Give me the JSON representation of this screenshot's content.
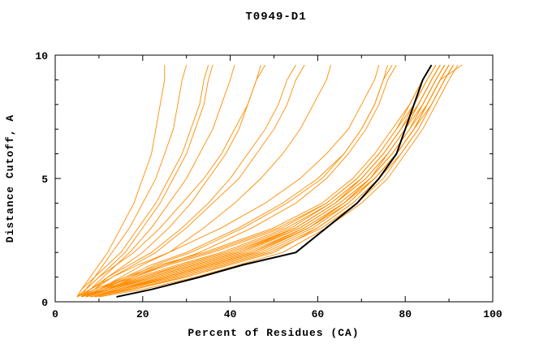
{
  "chart_data": {
    "type": "line",
    "title": "T0949-D1",
    "xlabel": "Percent of Residues (CA)",
    "ylabel": "Distance Cutoff, A",
    "xlim": [
      0,
      100
    ],
    "ylim": [
      0,
      10
    ],
    "xticks": [
      0,
      20,
      40,
      60,
      80,
      100
    ],
    "xminor": [
      10,
      30,
      50,
      70,
      90
    ],
    "yticks": [
      0,
      5,
      10
    ],
    "yminor": [
      1,
      2,
      3,
      4,
      6,
      7,
      8,
      9
    ],
    "grid": false,
    "legend": "none",
    "colors": {
      "models": "#ff8c00",
      "highlight": "#000000",
      "frame": "#000000"
    },
    "y_grid": [
      0.2,
      0.5,
      1,
      1.5,
      2,
      3,
      4,
      5,
      6,
      7,
      8,
      9,
      9.6
    ],
    "highlight_series": {
      "name": "black-consensus-curve",
      "x": [
        14,
        22,
        33,
        43,
        55,
        62,
        69,
        74,
        78,
        80,
        82,
        84,
        86
      ]
    },
    "model_series_x": [
      [
        8,
        15,
        25,
        35,
        45,
        58,
        66,
        72,
        76,
        80,
        83,
        86,
        88
      ],
      [
        7,
        12,
        20,
        30,
        40,
        55,
        64,
        70,
        75,
        79,
        82,
        85,
        87
      ],
      [
        9,
        18,
        30,
        40,
        50,
        60,
        68,
        74,
        78,
        82,
        85,
        88,
        90
      ],
      [
        6,
        10,
        18,
        26,
        36,
        52,
        62,
        69,
        74,
        78,
        81,
        84,
        86
      ],
      [
        8,
        14,
        24,
        34,
        44,
        57,
        66,
        73,
        78,
        82,
        86,
        89,
        91
      ],
      [
        7,
        13,
        22,
        32,
        42,
        56,
        65,
        72,
        77,
        81,
        84,
        87,
        89
      ],
      [
        10,
        20,
        32,
        42,
        52,
        62,
        70,
        76,
        80,
        84,
        87,
        90,
        92
      ],
      [
        6,
        11,
        19,
        28,
        38,
        53,
        63,
        70,
        75,
        79,
        83,
        86,
        88
      ],
      [
        8,
        16,
        27,
        37,
        47,
        59,
        67,
        73,
        78,
        82,
        85,
        88,
        90
      ],
      [
        7,
        12,
        21,
        31,
        41,
        55,
        64,
        71,
        76,
        80,
        83,
        86,
        88
      ],
      [
        9,
        17,
        28,
        38,
        48,
        60,
        68,
        74,
        79,
        83,
        86,
        89,
        91
      ],
      [
        5,
        9,
        16,
        24,
        34,
        50,
        61,
        68,
        73,
        77,
        81,
        84,
        86
      ],
      [
        8,
        15,
        26,
        36,
        46,
        58,
        67,
        73,
        78,
        82,
        85,
        88,
        90
      ],
      [
        7,
        13,
        23,
        33,
        43,
        56,
        65,
        72,
        77,
        81,
        84,
        87,
        89
      ],
      [
        6,
        10,
        17,
        25,
        35,
        51,
        62,
        69,
        74,
        78,
        82,
        85,
        87
      ],
      [
        8,
        14,
        25,
        35,
        45,
        57,
        66,
        73,
        78,
        82,
        85,
        88,
        93
      ],
      [
        7,
        11,
        20,
        29,
        39,
        54,
        63,
        70,
        75,
        79,
        83,
        86,
        88
      ],
      [
        9,
        18,
        29,
        39,
        49,
        61,
        69,
        75,
        79,
        83,
        86,
        89,
        91
      ],
      [
        6,
        12,
        22,
        32,
        42,
        55,
        64,
        71,
        76,
        80,
        84,
        87,
        89
      ],
      [
        8,
        16,
        26,
        36,
        46,
        58,
        66,
        72,
        77,
        81,
        85,
        88,
        90
      ],
      [
        6,
        10,
        16,
        22,
        30,
        42,
        52,
        60,
        66,
        70,
        73,
        75,
        76
      ],
      [
        7,
        12,
        18,
        25,
        33,
        45,
        55,
        62,
        67,
        71,
        74,
        76,
        78
      ],
      [
        5,
        8,
        13,
        19,
        26,
        38,
        48,
        56,
        62,
        67,
        70,
        73,
        74
      ],
      [
        6,
        11,
        17,
        23,
        31,
        43,
        53,
        61,
        66,
        70,
        73,
        75,
        77
      ],
      [
        5,
        6,
        8,
        10,
        12,
        15,
        18,
        20,
        22,
        23,
        24,
        25,
        25
      ],
      [
        5,
        7,
        9,
        11,
        13,
        17,
        20,
        23,
        25,
        27,
        28,
        29,
        30
      ],
      [
        6,
        7,
        10,
        13,
        16,
        20,
        24,
        27,
        30,
        32,
        34,
        35,
        36
      ],
      [
        5,
        8,
        11,
        14,
        17,
        22,
        26,
        30,
        33,
        36,
        38,
        40,
        41
      ],
      [
        6,
        9,
        12,
        16,
        20,
        26,
        31,
        35,
        39,
        42,
        44,
        46,
        47
      ],
      [
        5,
        7,
        10,
        14,
        18,
        24,
        29,
        34,
        38,
        41,
        44,
        46,
        48
      ],
      [
        6,
        8,
        12,
        17,
        22,
        29,
        35,
        40,
        44,
        48,
        51,
        53,
        55
      ],
      [
        7,
        10,
        15,
        20,
        26,
        34,
        41,
        47,
        52,
        56,
        59,
        62,
        63
      ],
      [
        5,
        6,
        9,
        12,
        15,
        19,
        23,
        26,
        29,
        31,
        33,
        34,
        35
      ],
      [
        6,
        9,
        13,
        18,
        23,
        30,
        36,
        42,
        46,
        50,
        53,
        55,
        57
      ]
    ]
  }
}
